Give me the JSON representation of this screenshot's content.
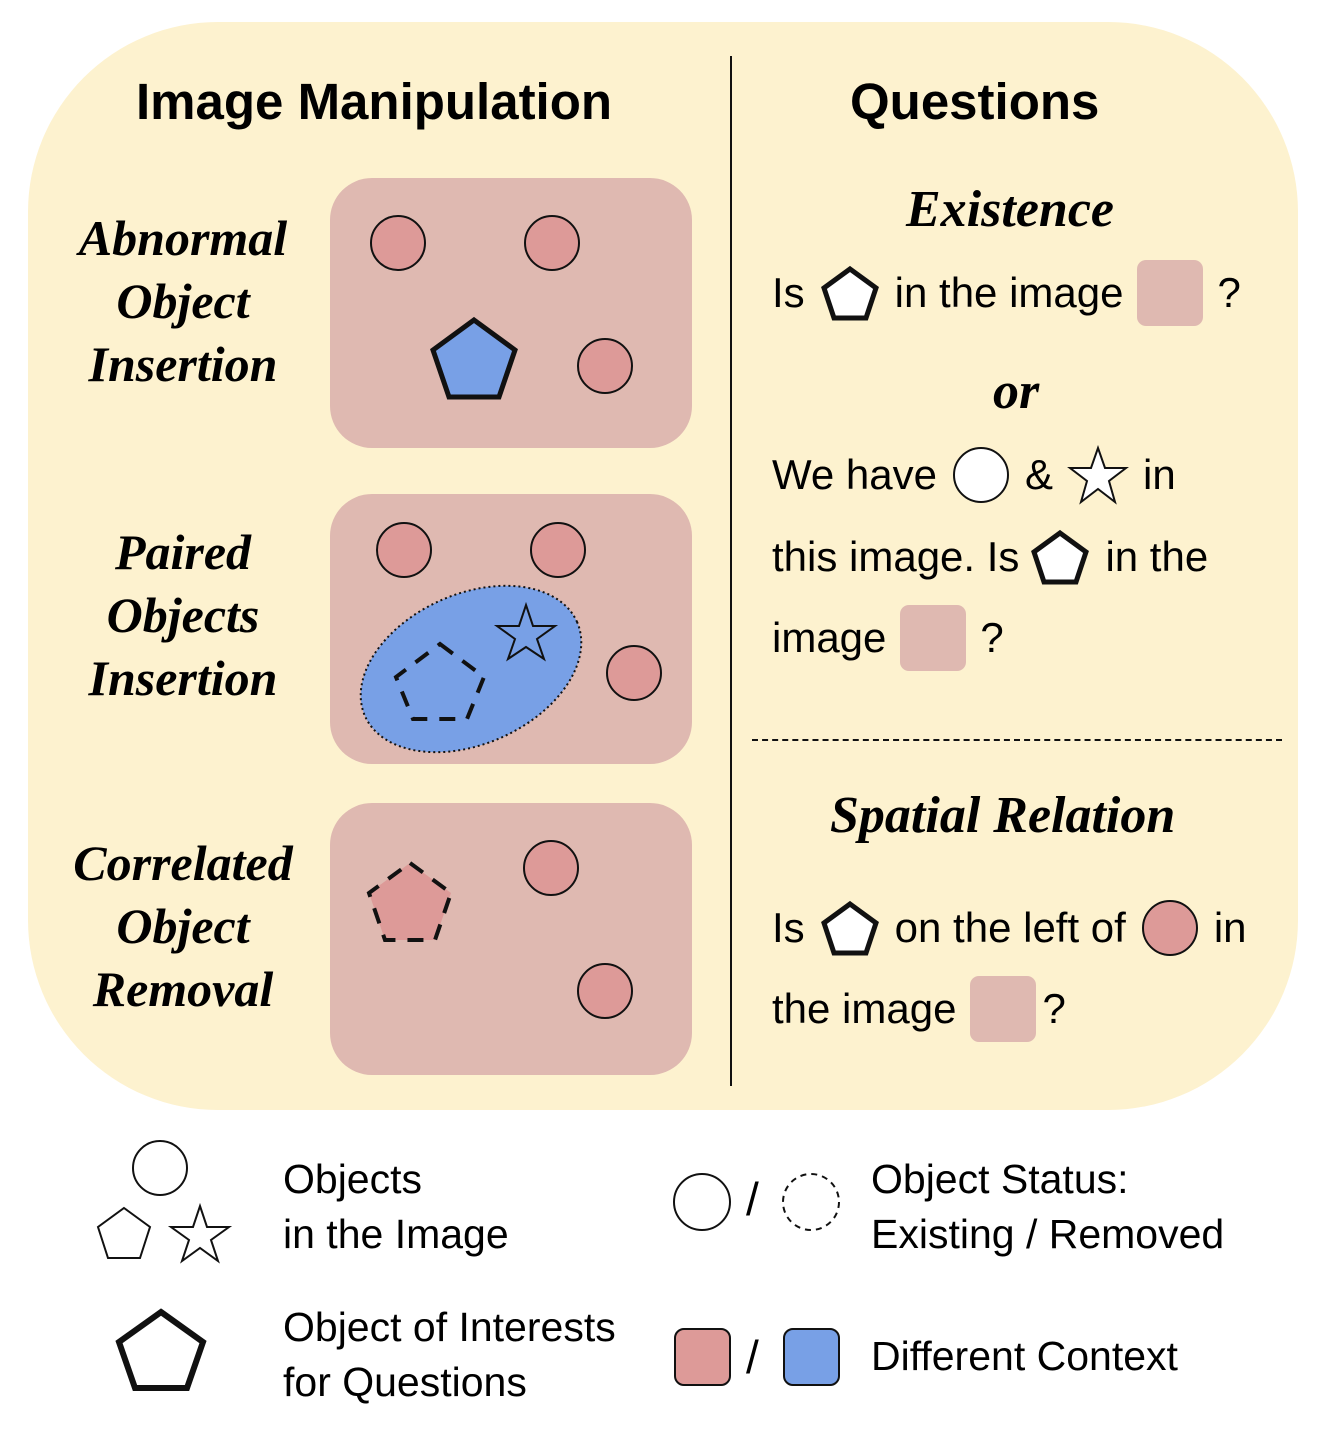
{
  "left_heading": "Image Manipulation",
  "right_heading": "Questions",
  "manipulations": [
    {
      "lines": [
        "Abnormal",
        "Object",
        "Insertion"
      ]
    },
    {
      "lines": [
        "Paired",
        "Objects",
        "Insertion"
      ]
    },
    {
      "lines": [
        "Correlated",
        "Object",
        "Removal"
      ]
    }
  ],
  "existence": {
    "title": "Existence",
    "q1": {
      "pre": "Is",
      "mid": "in the image",
      "end": "?"
    },
    "or": "or",
    "q2": {
      "l1_a": "We have",
      "l1_b": "&",
      "l1_c": "in",
      "l2_a": "this image. Is",
      "l2_b": "in the",
      "l3_a": "image",
      "l3_b": "?"
    }
  },
  "spatial": {
    "title": "Spatial Relation",
    "q": {
      "l1_a": "Is",
      "l1_b": "on the left of",
      "l1_c": "in",
      "l2_a": "the image",
      "l2_b": "?"
    }
  },
  "legend": {
    "objects": [
      "Objects",
      "in the Image"
    ],
    "status": [
      "Object Status:",
      "Existing / Removed"
    ],
    "interest": [
      "Object of Interests",
      "for Questions"
    ],
    "context": "Different Context",
    "slash": "/"
  },
  "colors": {
    "panel_bg": "#fdf2cf",
    "context_pink": "#dfb9b1",
    "object_pink": "#dd9a98",
    "context_blue": "#78a0e6"
  },
  "icons": [
    "circle-icon",
    "pentagon-icon",
    "star-icon",
    "dashed-pentagon-icon",
    "dashed-circle-icon"
  ]
}
